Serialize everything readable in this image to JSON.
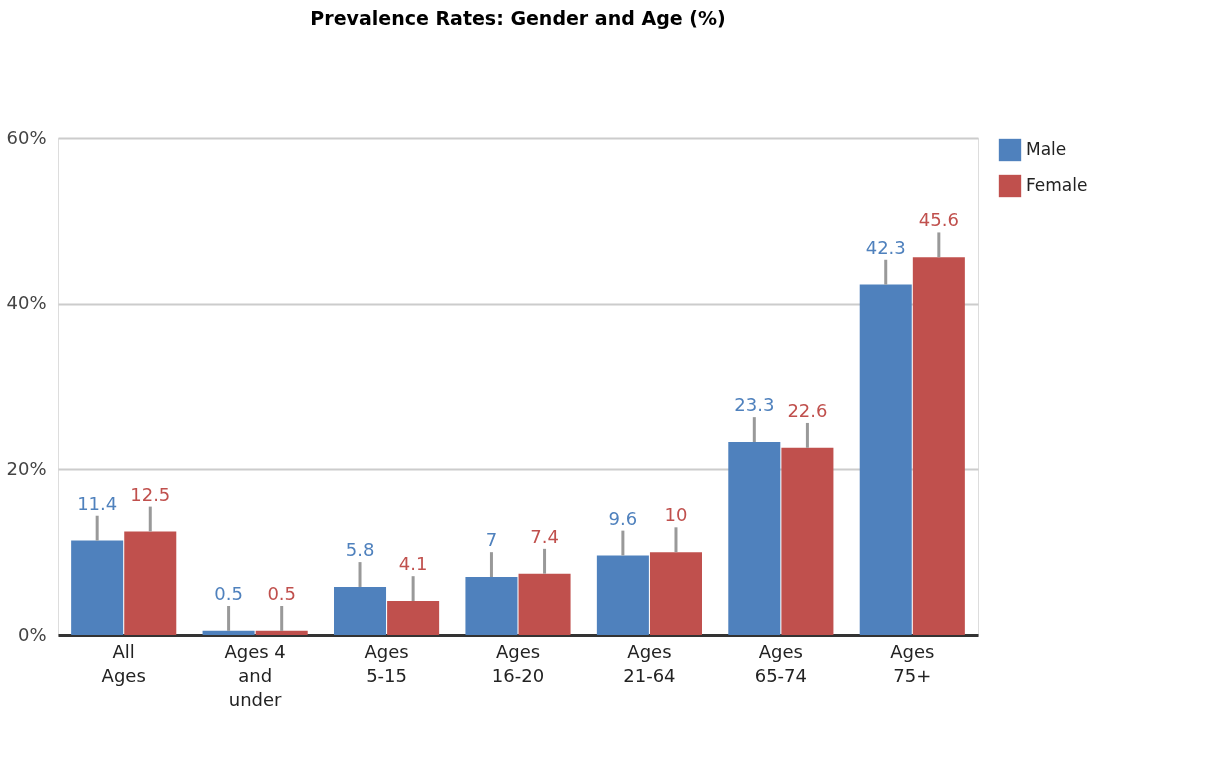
{
  "chart_data": {
    "type": "bar",
    "title": "Prevalence Rates: Gender and Age (%)",
    "categories": [
      "All Ages",
      "Ages 4 and under",
      "Ages 5-15",
      "Ages 16-20",
      "Ages 21-64",
      "Ages 65-74",
      "Ages 75+"
    ],
    "series": [
      {
        "name": "Male",
        "color": "#4f81bd",
        "values": [
          11.4,
          0.5,
          5.8,
          7,
          9.6,
          23.3,
          42.3
        ],
        "errors": [
          [
            11.4,
            14.4
          ],
          [
            0.5,
            3.5
          ],
          [
            5.8,
            8.8
          ],
          [
            7,
            10
          ],
          [
            9.6,
            12.6
          ],
          [
            23.3,
            26.3
          ],
          [
            42.3,
            45.3
          ]
        ]
      },
      {
        "name": "Female",
        "color": "#c0504d",
        "values": [
          12.5,
          0.5,
          4.1,
          7.4,
          10,
          22.6,
          45.6
        ],
        "errors": [
          [
            12.5,
            15.5
          ],
          [
            0.5,
            3.5
          ],
          [
            4.1,
            7.1
          ],
          [
            7.4,
            10.4
          ],
          [
            10,
            13
          ],
          [
            22.6,
            25.6
          ],
          [
            45.6,
            48.6
          ]
        ]
      }
    ],
    "ylim": [
      0,
      60
    ],
    "yticks": [
      {
        "value": 0,
        "label": "0%"
      },
      {
        "value": 20,
        "label": "20%"
      },
      {
        "value": 40,
        "label": "40%"
      },
      {
        "value": 60,
        "label": "60%"
      }
    ],
    "grid": "y",
    "legend": "top right",
    "data_labels": true
  }
}
